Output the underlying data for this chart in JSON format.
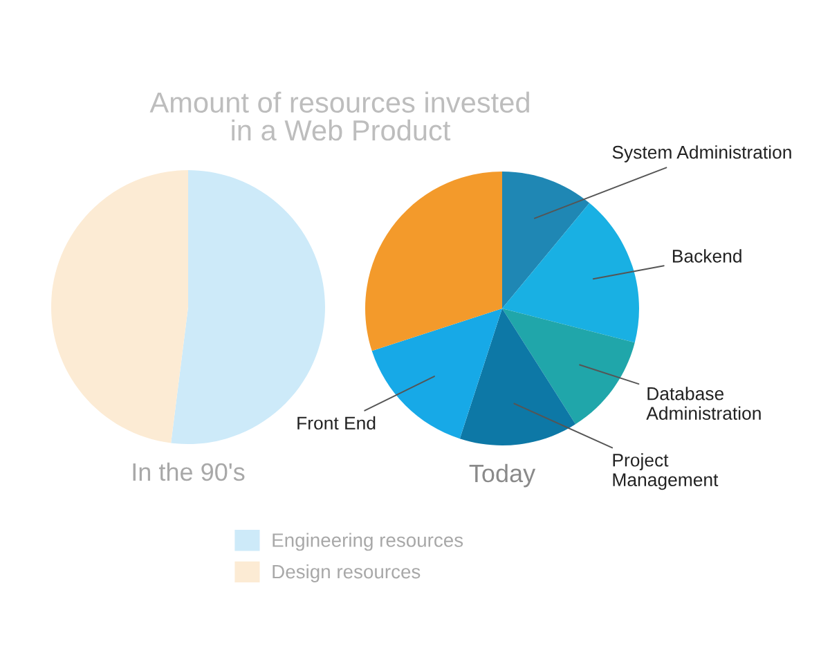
{
  "chart_data": [
    {
      "type": "pie",
      "title": "Amount of resources invested\nin a Web Product",
      "xlabel": "In the 90's",
      "categories": [
        "Engineering resources",
        "Design resources"
      ],
      "values": [
        52,
        48
      ],
      "colors": [
        "#cdeaf9",
        "#fcebd4"
      ],
      "legend": "bottom"
    },
    {
      "type": "pie",
      "xlabel": "Today",
      "categories": [
        "System Administration",
        "Backend",
        "Database\nAdministration",
        "Project\nManagement",
        "Front End",
        null
      ],
      "values": [
        11,
        18,
        12,
        14,
        15,
        30
      ],
      "colors": [
        "#1f87b4",
        "#19b0e3",
        "#20a6aa",
        "#0d78a6",
        "#17a9e7",
        "#f39a2b"
      ]
    }
  ]
}
